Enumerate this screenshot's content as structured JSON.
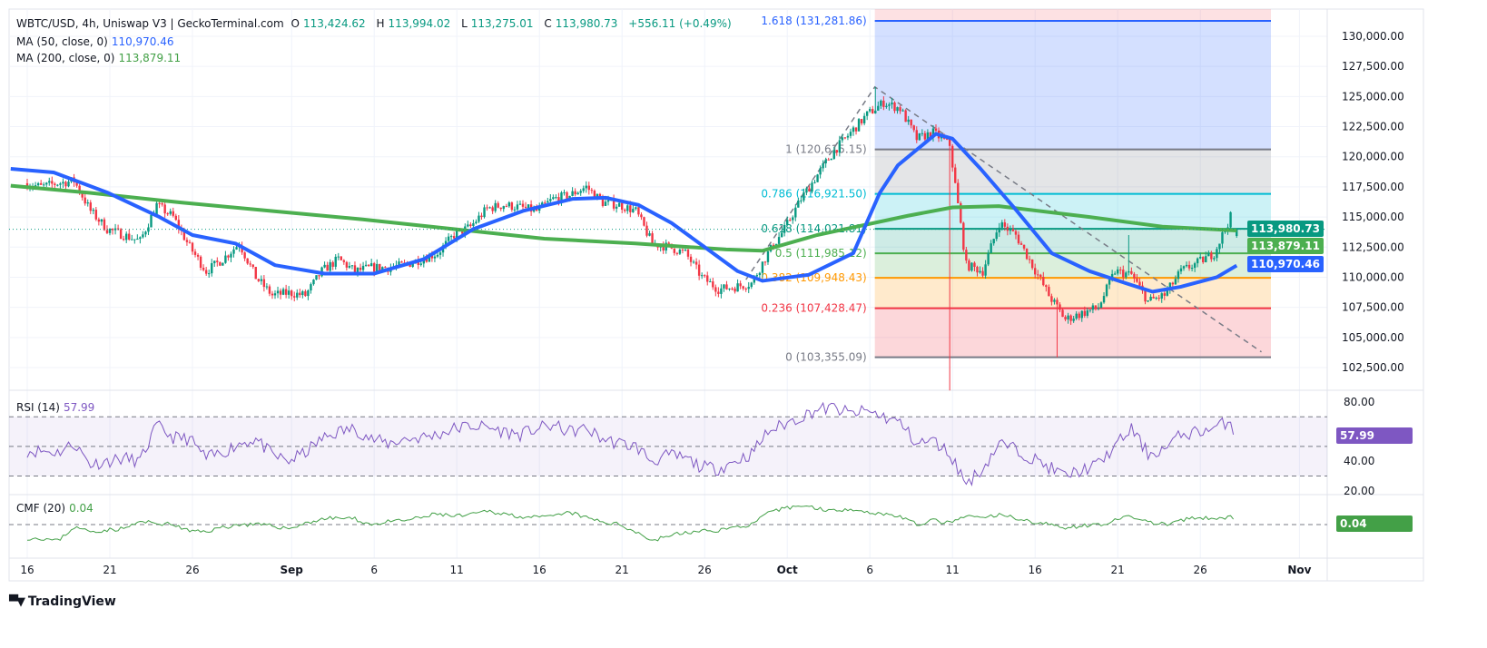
{
  "header": {
    "symbol": "WBTC/USD, 4h, Uniswap V3 | GeckoTerminal.com",
    "o_label": "O",
    "o": "113,424.62",
    "h_label": "H",
    "h": "113,994.02",
    "l_label": "L",
    "l": "113,275.01",
    "c_label": "C",
    "c": "113,980.73",
    "change": "+556.11 (+0.49%)"
  },
  "indicators": {
    "ma50_label": "MA (50, close, 0)",
    "ma50_value": "110,970.46",
    "ma200_label": "MA (200, close, 0)",
    "ma200_value": "113,879.11",
    "rsi_label": "RSI (14)",
    "rsi_value": "57.99",
    "cmf_label": "CMF (20)",
    "cmf_value": "0.04"
  },
  "badges": {
    "last_price": "113,980.73",
    "ma200": "113,879.11",
    "ma50": "110,970.46",
    "rsi": "57.99",
    "cmf": "0.04"
  },
  "colors": {
    "up": "#089981",
    "down": "#f23645",
    "ma50": "#2962ff",
    "ma200": "#4caf50",
    "rsi": "#7e57c2",
    "cmf": "#43a047"
  },
  "watermark": "TradingView",
  "chart_data": {
    "type": "candlestick",
    "timeframe": "4h",
    "x_ticks": [
      {
        "label": "16",
        "day": 0
      },
      {
        "label": "21",
        "day": 5
      },
      {
        "label": "26",
        "day": 10
      },
      {
        "label": "Sep",
        "day": 16,
        "bold": true
      },
      {
        "label": "6",
        "day": 21
      },
      {
        "label": "11",
        "day": 26
      },
      {
        "label": "16",
        "day": 31
      },
      {
        "label": "21",
        "day": 36
      },
      {
        "label": "26",
        "day": 41
      },
      {
        "label": "Oct",
        "day": 46,
        "bold": true
      },
      {
        "label": "6",
        "day": 51
      },
      {
        "label": "11",
        "day": 56
      },
      {
        "label": "16",
        "day": 61
      },
      {
        "label": "21",
        "day": 66
      },
      {
        "label": "26",
        "day": 71
      },
      {
        "label": "Nov",
        "day": 77,
        "bold": true
      }
    ],
    "y_ticks": [
      "130,000.00",
      "127,500.00",
      "125,000.00",
      "122,500.00",
      "120,000.00",
      "117,500.00",
      "115,000.00",
      "112,500.00",
      "110,000.00",
      "107,500.00",
      "105,000.00",
      "102,500.00"
    ],
    "ylim": [
      102500,
      130000
    ],
    "approx_daily_close": [
      117500,
      117800,
      118000,
      115500,
      114000,
      113500,
      113000,
      116000,
      115000,
      112500,
      110500,
      111500,
      112800,
      110000,
      108500,
      108700,
      108500,
      110500,
      111500,
      110500,
      110800,
      110800,
      111000,
      111500,
      112000,
      113500,
      114200,
      115700,
      116000,
      115800,
      115500,
      116500,
      116800,
      117500,
      116200,
      116000,
      115500,
      112800,
      112500,
      112000,
      110000,
      109000,
      109200,
      109500,
      112000,
      114000,
      116500,
      118500,
      120500,
      122000,
      123500,
      124500,
      124000,
      121500,
      122000,
      121000,
      111000,
      110500,
      114500,
      113500,
      111000,
      108500,
      106500,
      107000,
      107500,
      110500,
      110200,
      108000,
      108500,
      110500,
      111200,
      112000,
      115000,
      113980.73
    ],
    "notable_wicks": [
      {
        "day": 55.8,
        "low": 100600
      },
      {
        "day": 51.3,
        "high": 125800
      },
      {
        "day": 62.3,
        "low": 103355
      },
      {
        "day": 66.6,
        "high": 113500
      }
    ],
    "ma50": [
      [
        -1,
        119000
      ],
      [
        1.6,
        118700
      ],
      [
        4.9,
        117000
      ],
      [
        8,
        115000
      ],
      [
        10,
        113500
      ],
      [
        12.6,
        112800
      ],
      [
        15,
        111000
      ],
      [
        18,
        110300
      ],
      [
        21,
        110300
      ],
      [
        24,
        111500
      ],
      [
        27,
        114000
      ],
      [
        30,
        115500
      ],
      [
        33,
        116500
      ],
      [
        35,
        116600
      ],
      [
        37,
        116000
      ],
      [
        39,
        114500
      ],
      [
        41,
        112500
      ],
      [
        43,
        110500
      ],
      [
        44.5,
        109700
      ],
      [
        47.3,
        110200
      ],
      [
        50,
        112000
      ],
      [
        51.6,
        117000
      ],
      [
        52.7,
        119300
      ],
      [
        55,
        121900
      ],
      [
        56,
        121500
      ],
      [
        57.7,
        119000
      ],
      [
        59.9,
        115500
      ],
      [
        62,
        112000
      ],
      [
        64.3,
        110500
      ],
      [
        66.5,
        109500
      ],
      [
        68.1,
        108800
      ],
      [
        69.8,
        109200
      ],
      [
        72,
        110000
      ],
      [
        73.2,
        110970.46
      ]
    ],
    "ma200": [
      [
        -1,
        117600
      ],
      [
        3.8,
        117000
      ],
      [
        9.3,
        116200
      ],
      [
        14.8,
        115500
      ],
      [
        20.3,
        114800
      ],
      [
        25.8,
        114000
      ],
      [
        31.3,
        113200
      ],
      [
        36.8,
        112800
      ],
      [
        42.3,
        112300
      ],
      [
        44.5,
        112200
      ],
      [
        47.8,
        113500
      ],
      [
        53.3,
        115100
      ],
      [
        56,
        115800
      ],
      [
        58.8,
        115900
      ],
      [
        64.3,
        115000
      ],
      [
        68.7,
        114200
      ],
      [
        73.2,
        113879.11
      ]
    ],
    "fibonacci": [
      {
        "level": "1.618",
        "price": 131281.86,
        "label": "1.618 (131,281.86)",
        "color": "#2962ff"
      },
      {
        "level": "1",
        "price": 120615.15,
        "label": "1 (120,615.15)",
        "color": "#787b86"
      },
      {
        "level": "0.786",
        "price": 116921.5,
        "label": "0.786 (116,921.50)",
        "color": "#00bcd4"
      },
      {
        "level": "0.618",
        "price": 114021.81,
        "label": "0.618 (114,021.81)",
        "color": "#089981"
      },
      {
        "level": "0.5",
        "price": 111985.12,
        "label": "0.5 (111,985.12)",
        "color": "#4caf50"
      },
      {
        "level": "0.382",
        "price": 109948.43,
        "label": "0.382 (109,948.43)",
        "color": "#ff9800"
      },
      {
        "level": "0.236",
        "price": 107428.47,
        "label": "0.236 (107,428.47)",
        "color": "#f23645"
      },
      {
        "level": "0",
        "price": 103355.09,
        "label": "0 (103,355.09)",
        "color": "#787b86"
      }
    ],
    "trendline": [
      [
        43.5,
        109800
      ],
      [
        51.3,
        125800
      ],
      [
        74.7,
        103800
      ]
    ],
    "rsi": {
      "ylim": [
        20,
        80
      ],
      "ticks": [
        "80.00",
        "40.00",
        "20.00"
      ],
      "bands": [
        70,
        50,
        30
      ],
      "approx_daily": [
        47,
        46,
        52,
        38,
        40,
        42,
        40,
        64,
        56,
        55,
        42,
        46,
        52,
        55,
        44,
        40,
        46,
        55,
        60,
        62,
        55,
        52,
        55,
        56,
        58,
        62,
        64,
        63,
        60,
        58,
        62,
        64,
        60,
        62,
        55,
        52,
        50,
        40,
        44,
        42,
        36,
        35,
        40,
        45,
        60,
        65,
        70,
        75,
        76,
        72,
        74,
        70,
        66,
        52,
        54,
        45,
        25,
        35,
        52,
        48,
        42,
        36,
        30,
        34,
        38,
        50,
        62,
        45,
        48,
        58,
        60,
        62,
        68,
        57.99
      ]
    },
    "cmf": {
      "zero_line": 0,
      "approx_daily": [
        -0.1,
        -0.12,
        -0.02,
        -0.05,
        -0.04,
        -0.03,
        0.02,
        0.01,
        0,
        -0.05,
        -0.05,
        -0.02,
        0,
        0,
        -0.01,
        -0.03,
        0.01,
        0.04,
        0.05,
        0.04,
        0,
        0.02,
        0.03,
        0.05,
        0.08,
        0.06,
        0.07,
        0.1,
        0.08,
        0.06,
        0.05,
        0.06,
        0.09,
        0.05,
        0.02,
        0,
        -0.05,
        -0.12,
        -0.08,
        -0.06,
        -0.05,
        -0.04,
        -0.02,
        0,
        0.08,
        0.12,
        0.14,
        0.12,
        0.1,
        0.12,
        0.09,
        0.08,
        0.06,
        0,
        0.03,
        0.01,
        0.06,
        0.05,
        0.07,
        0.05,
        0.02,
        0,
        -0.02,
        -0.01,
        0,
        0.03,
        0.06,
        0.02,
        0,
        0.03,
        0.05,
        0.04,
        0.06,
        0.04
      ]
    }
  }
}
